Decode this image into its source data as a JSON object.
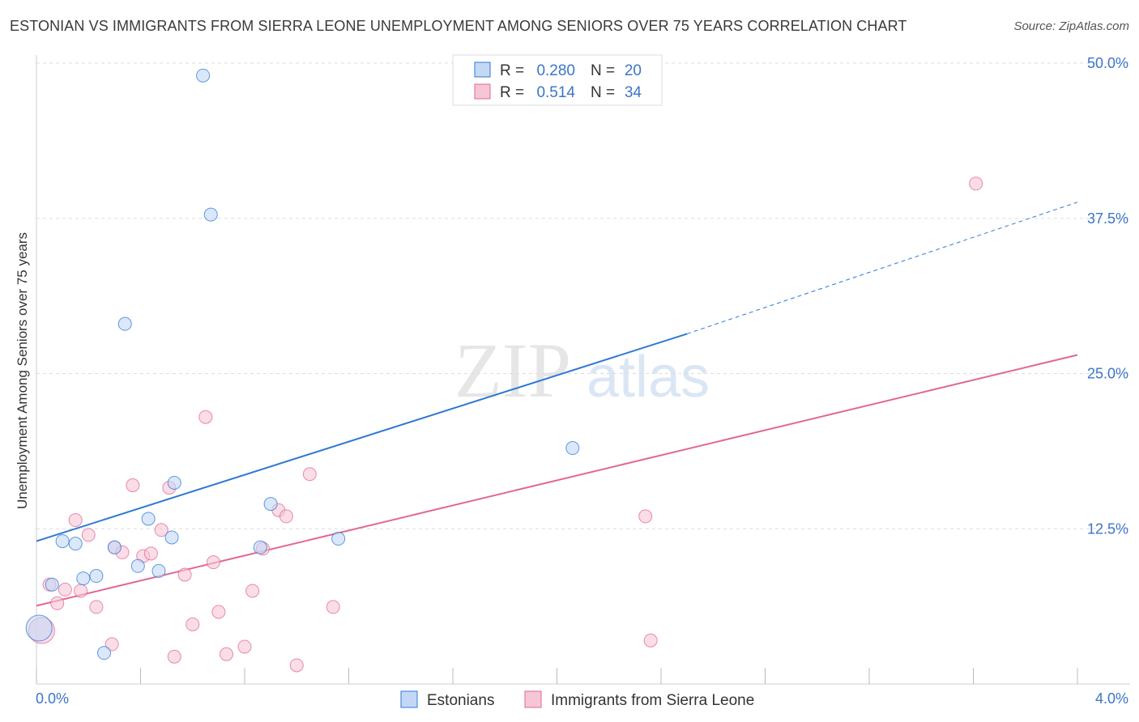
{
  "title": "ESTONIAN VS IMMIGRANTS FROM SIERRA LEONE UNEMPLOYMENT AMONG SENIORS OVER 75 YEARS CORRELATION CHART",
  "source": "Source: ZipAtlas.com",
  "watermark": {
    "zip": "ZIP",
    "atlas": "atlas"
  },
  "colors": {
    "blue": "#2f78d4",
    "blue_fill": "#c3d8f6",
    "pink": "#e26795",
    "pink_fill": "#f7c6d6",
    "tick_label": "#3d74c8",
    "grid": "#dddddd"
  },
  "chart_data": {
    "type": "scatter",
    "title": "ESTONIAN VS IMMIGRANTS FROM SIERRA LEONE UNEMPLOYMENT AMONG SENIORS OVER 75 YEARS CORRELATION CHART",
    "xlabel": "",
    "ylabel": "Unemployment Among Seniors over 75 years",
    "xlim": [
      0,
      4.0
    ],
    "ylim": [
      0,
      50.0
    ],
    "x_tick_labels": [
      "0.0%",
      "4.0%"
    ],
    "y_ticks": [
      12.5,
      25.0,
      37.5,
      50.0
    ],
    "y_tick_labels": [
      "12.5%",
      "25.0%",
      "37.5%",
      "50.0%"
    ],
    "legend": {
      "position": "top-center",
      "entries": [
        {
          "r_label": "R =",
          "r_value": "0.280",
          "n_label": "N =",
          "n_value": "20"
        },
        {
          "r_label": "R =",
          "r_value": "0.514",
          "n_label": "N =",
          "n_value": "34"
        }
      ]
    },
    "series": [
      {
        "name": "Estonians",
        "color": "blue",
        "points": [
          [
            0.01,
            4.5
          ],
          [
            0.06,
            8.0
          ],
          [
            0.1,
            11.5
          ],
          [
            0.15,
            11.3
          ],
          [
            0.18,
            8.5
          ],
          [
            0.23,
            8.7
          ],
          [
            0.26,
            2.5
          ],
          [
            0.3,
            11.0
          ],
          [
            0.34,
            29.0
          ],
          [
            0.39,
            9.5
          ],
          [
            0.43,
            13.3
          ],
          [
            0.47,
            9.1
          ],
          [
            0.52,
            11.8
          ],
          [
            0.53,
            16.2
          ],
          [
            0.64,
            49.0
          ],
          [
            0.67,
            37.8
          ],
          [
            0.86,
            11.0
          ],
          [
            0.9,
            14.5
          ],
          [
            1.16,
            11.7
          ],
          [
            2.06,
            19.0
          ]
        ],
        "trend": {
          "x0": 0.0,
          "y0": 11.5,
          "x1": 2.5,
          "y1": 28.2,
          "dashed_to_x": 4.0,
          "dashed_to_y": 38.8
        }
      },
      {
        "name": "Immigrants from Sierra Leone",
        "color": "pink",
        "points": [
          [
            0.02,
            4.3
          ],
          [
            0.05,
            8.0
          ],
          [
            0.08,
            6.5
          ],
          [
            0.11,
            7.6
          ],
          [
            0.15,
            13.2
          ],
          [
            0.17,
            7.5
          ],
          [
            0.2,
            12.0
          ],
          [
            0.23,
            6.2
          ],
          [
            0.29,
            3.2
          ],
          [
            0.3,
            11.0
          ],
          [
            0.33,
            10.6
          ],
          [
            0.37,
            16.0
          ],
          [
            0.41,
            10.3
          ],
          [
            0.44,
            10.5
          ],
          [
            0.48,
            12.4
          ],
          [
            0.51,
            15.8
          ],
          [
            0.53,
            2.2
          ],
          [
            0.57,
            8.8
          ],
          [
            0.6,
            4.8
          ],
          [
            0.65,
            21.5
          ],
          [
            0.68,
            9.8
          ],
          [
            0.7,
            5.8
          ],
          [
            0.73,
            2.4
          ],
          [
            0.8,
            3.0
          ],
          [
            0.83,
            7.5
          ],
          [
            0.87,
            10.9
          ],
          [
            0.93,
            14.0
          ],
          [
            0.96,
            13.5
          ],
          [
            1.0,
            1.5
          ],
          [
            1.05,
            16.9
          ],
          [
            1.14,
            6.2
          ],
          [
            2.34,
            13.5
          ],
          [
            2.36,
            3.5
          ],
          [
            3.61,
            40.3
          ]
        ],
        "trend": {
          "x0": 0.0,
          "y0": 6.3,
          "x1": 4.0,
          "y1": 26.5
        }
      }
    ]
  }
}
